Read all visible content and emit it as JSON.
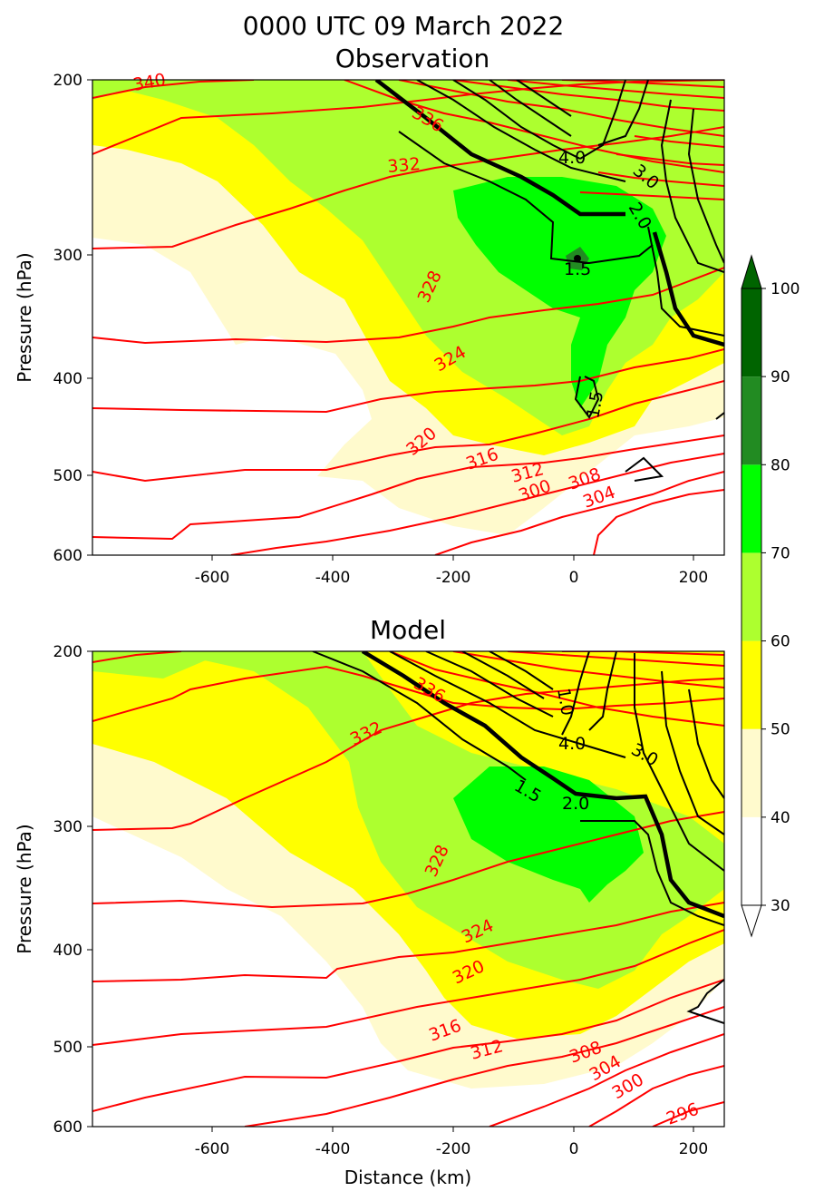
{
  "figure": {
    "title": "0000 UTC 09 March 2022",
    "panel_titles": [
      "Observation",
      "Model"
    ],
    "xlabel": "Distance (km)",
    "ylabel": "Pressure (hPa)"
  },
  "colorbar": {
    "levels": [
      30,
      40,
      50,
      60,
      70,
      80,
      90,
      100
    ],
    "tick_labels": [
      "30",
      "40",
      "50",
      "60",
      "70",
      "80",
      "90",
      "100"
    ],
    "colors": [
      "#ffffff",
      "#fffacd",
      "#ffff00",
      "#adff2f",
      "#00ff00",
      "#228b22",
      "#006400"
    ],
    "extend": "both",
    "over_color": "#006400",
    "under_color": "#ffffff"
  },
  "chart_data": [
    {
      "type": "filled-contour",
      "panel": "Observation",
      "x_ticks": [
        "-600",
        "-400",
        "-200",
        "0",
        "200"
      ],
      "x_tick_values": [
        -600,
        -400,
        -200,
        0,
        200
      ],
      "y_ticks": [
        "200",
        "300",
        "400",
        "500",
        "600"
      ],
      "y_tick_values": [
        200,
        300,
        400,
        500,
        600
      ],
      "xlim": [
        -800,
        250
      ],
      "ylim": [
        600,
        200
      ],
      "yscale": "log",
      "theta_contours": [
        {
          "label": "300",
          "points": [
            [
              50,
              600
            ],
            [
              100,
              540
            ],
            [
              150,
              505
            ],
            [
              250,
              480
            ]
          ],
          "label_at": [
            120,
            540
          ]
        },
        {
          "label": "304",
          "points": [
            [
              -200,
              600
            ],
            [
              -100,
              575
            ],
            [
              0,
              545
            ],
            [
              100,
              515
            ],
            [
              250,
              475
            ]
          ],
          "label_at": [
            50,
            550
          ]
        },
        {
          "label": "308",
          "points": [
            [
              -600,
              600
            ],
            [
              -400,
              590
            ],
            [
              -200,
              570
            ],
            [
              -50,
              550
            ],
            [
              100,
              510
            ],
            [
              250,
              470
            ]
          ],
          "label_at": [
            0,
            535
          ]
        },
        {
          "label": "312",
          "points": [
            [
              -800,
              580
            ],
            [
              -650,
              578
            ],
            [
              -600,
              565
            ],
            [
              -400,
              550
            ],
            [
              -300,
              545
            ],
            [
              -200,
              525
            ],
            [
              -100,
              515
            ],
            [
              50,
              495
            ],
            [
              250,
              465
            ]
          ],
          "label_at": [
            -70,
            517
          ]
        },
        {
          "label": "316",
          "points": [
            [
              -800,
              495
            ],
            [
              -650,
              505
            ],
            [
              -550,
              500
            ],
            [
              -400,
              500
            ],
            [
              -200,
              495
            ],
            [
              -100,
              480
            ],
            [
              0,
              470
            ],
            [
              100,
              455
            ],
            [
              250,
              430
            ]
          ],
          "label_at": [
            -140,
            487
          ]
        },
        {
          "label": "320",
          "points": [
            [
              -800,
              428
            ],
            [
              -600,
              430
            ],
            [
              -400,
              432
            ],
            [
              -300,
              500
            ],
            [
              -200,
              450
            ],
            [
              -100,
              440
            ],
            [
              0,
              420
            ],
            [
              150,
              405
            ],
            [
              250,
              395
            ]
          ],
          "label_at": [
            -240,
            465
          ]
        },
        {
          "label": "324",
          "points": [
            [
              -800,
              365
            ],
            [
              -670,
              370
            ],
            [
              -400,
              368
            ],
            [
              -250,
              360
            ],
            [
              -150,
              355
            ],
            [
              -50,
              345
            ],
            [
              50,
              330
            ],
            [
              150,
              320
            ],
            [
              250,
              300
            ]
          ],
          "label_at": [
            -200,
            395
          ]
        },
        {
          "label": "328",
          "points": [
            [
              -800,
              296
            ],
            [
              -670,
              295
            ],
            [
              -500,
              265
            ],
            [
              -300,
              250
            ],
            [
              -220,
              260
            ],
            [
              -100,
              260
            ],
            [
              50,
              240
            ],
            [
              150,
              230
            ],
            [
              250,
              225
            ]
          ],
          "label_at": [
            -230,
            325
          ]
        },
        {
          "label": "332",
          "points": [
            [
              -800,
              240
            ],
            [
              -670,
              232
            ],
            [
              -500,
              230
            ],
            [
              -350,
              225
            ],
            [
              -250,
              215
            ],
            [
              -100,
              210
            ],
            [
              50,
              205
            ],
            [
              150,
              200
            ],
            [
              250,
              200
            ]
          ],
          "label_at": [
            -270,
            238
          ]
        },
        {
          "label": "336",
          "points": [
            [
              -800,
              210
            ],
            [
              -600,
              200
            ]
          ],
          "label_at": [
            -240,
            218
          ]
        },
        {
          "label": "340",
          "points": [
            [
              -700,
              200
            ],
            [
              -650,
              200
            ]
          ],
          "label_at": [
            -700,
            201
          ]
        }
      ],
      "wind_contours": [
        {
          "label": "1.5",
          "points": [
            [
              -40,
              305
            ],
            [
              0,
              298
            ],
            [
              50,
              295
            ],
            [
              80,
              292
            ]
          ],
          "label_at": [
            15,
            308
          ],
          "bold": false
        },
        {
          "label": "2.0",
          "points": [
            [
              -350,
              200
            ],
            [
              -200,
              230
            ],
            [
              -50,
              262
            ],
            [
              0,
              265
            ],
            [
              90,
              265
            ]
          ],
          "label_at": [
            115,
            262
          ],
          "bold": true
        },
        {
          "label": "3.0",
          "points": [
            [
              -300,
              200
            ],
            [
              -150,
              225
            ],
            [
              0,
              242
            ],
            [
              100,
              245
            ]
          ],
          "label_at": [
            130,
            245
          ],
          "bold": false
        },
        {
          "label": "4.0",
          "points": [
            [
              -250,
              200
            ],
            [
              -100,
              218
            ],
            [
              0,
              230
            ],
            [
              80,
              232
            ]
          ],
          "label_at": [
            0,
            230
          ],
          "bold": false
        },
        {
          "label": "1.5",
          "points": [
            [
              0,
              400
            ],
            [
              10,
              420
            ],
            [
              30,
              440
            ]
          ],
          "label_at": [
            30,
            420
          ],
          "bold": false
        }
      ],
      "jet_max_label": "1.5"
    },
    {
      "type": "filled-contour",
      "panel": "Model",
      "x_ticks": [
        "-600",
        "-400",
        "-200",
        "0",
        "200"
      ],
      "x_tick_values": [
        -600,
        -400,
        -200,
        0,
        200
      ],
      "y_ticks": [
        "200",
        "300",
        "400",
        "500",
        "600"
      ],
      "y_tick_values": [
        200,
        300,
        400,
        500,
        600
      ],
      "xlim": [
        -800,
        250
      ],
      "ylim": [
        600,
        200
      ],
      "yscale": "log",
      "theta_contours": [
        {
          "label": "296",
          "points": [
            [
              150,
              600
            ],
            [
              250,
              570
            ]
          ],
          "label_at": [
            200,
            585
          ]
        },
        {
          "label": "300",
          "points": [
            [
              0,
              600
            ],
            [
              100,
              560
            ],
            [
              250,
              520
            ]
          ],
          "label_at": [
            100,
            560
          ]
        },
        {
          "label": "304",
          "points": [
            [
              -300,
              600
            ],
            [
              -100,
              580
            ],
            [
              50,
              545
            ],
            [
              250,
              495
            ]
          ],
          "label_at": [
            60,
            540
          ]
        },
        {
          "label": "308",
          "points": [
            [
              -800,
              580
            ],
            [
              -600,
              560
            ],
            [
              -400,
              545
            ],
            [
              -200,
              530
            ],
            [
              0,
              505
            ],
            [
              250,
              460
            ]
          ],
          "label_at": [
            20,
            518
          ]
        },
        {
          "label": "312",
          "points": [
            [
              -800,
              500
            ],
            [
              -650,
              495
            ],
            [
              -500,
              500
            ],
            [
              -400,
              495
            ],
            [
              -300,
              490
            ],
            [
              -150,
              475
            ],
            [
              0,
              460
            ],
            [
              250,
              420
            ]
          ],
          "label_at": [
            -140,
            505
          ]
        },
        {
          "label": "316",
          "points": [
            [
              -800,
              430
            ],
            [
              -650,
              430
            ],
            [
              -500,
              425
            ],
            [
              -400,
              428
            ],
            [
              -300,
              420
            ],
            [
              -200,
              410
            ],
            [
              -50,
              400
            ],
            [
              100,
              385
            ],
            [
              250,
              370
            ]
          ],
          "label_at": [
            -200,
            480
          ]
        },
        {
          "label": "320",
          "points": [
            [
              -800,
              362
            ],
            [
              -650,
              360
            ],
            [
              -500,
              365
            ],
            [
              -400,
              370
            ],
            [
              -300,
              365
            ],
            [
              -150,
              345
            ],
            [
              0,
              330
            ],
            [
              150,
              320
            ],
            [
              250,
              310
            ]
          ],
          "label_at": [
            -160,
            430
          ]
        },
        {
          "label": "324",
          "points": [
            [
              -800,
              305
            ],
            [
              -670,
              303
            ],
            [
              -500,
              290
            ],
            [
              -400,
              270
            ],
            [
              -300,
              255
            ],
            [
              -200,
              245
            ],
            [
              -50,
              235
            ],
            [
              100,
              225
            ],
            [
              250,
              220
            ]
          ],
          "label_at": [
            -150,
            395
          ]
        },
        {
          "label": "328",
          "points": [
            [
              -800,
              240
            ],
            [
              -670,
              230
            ],
            [
              -500,
              220
            ],
            [
              -400,
              212
            ],
            [
              -300,
              205
            ],
            [
              -200,
              200
            ]
          ],
          "label_at": [
            -230,
            325
          ]
        },
        {
          "label": "332",
          "points": [
            [
              -800,
              205
            ],
            [
              -650,
              200
            ]
          ],
          "label_at": [
            -330,
            248
          ]
        },
        {
          "label": "336",
          "points": [
            [
              -700,
              200
            ]
          ],
          "label_at": [
            -240,
            228
          ]
        }
      ],
      "wind_contours": [
        {
          "label": "1.5",
          "points": [
            [
              -330,
              200
            ],
            [
              -200,
              240
            ],
            [
              -100,
              265
            ],
            [
              0,
              282
            ]
          ],
          "label_at": [
            -70,
            290
          ],
          "bold": false
        },
        {
          "label": "2.0",
          "points": [
            [
              -270,
              200
            ],
            [
              -150,
              245
            ],
            [
              0,
              280
            ],
            [
              80,
              285
            ]
          ],
          "label_at": [
            10,
            290
          ],
          "bold": true
        },
        {
          "label": "3.0",
          "points": [
            [
              -200,
              200
            ],
            [
              -50,
              230
            ],
            [
              50,
              250
            ],
            [
              120,
              255
            ]
          ],
          "label_at": [
            120,
            255
          ],
          "bold": false
        },
        {
          "label": "4.0",
          "points": [
            [
              -150,
              200
            ],
            [
              -50,
              220
            ],
            [
              0,
              245
            ],
            [
              80,
              248
            ]
          ],
          "label_at": [
            0,
            248
          ],
          "bold": false
        },
        {
          "label": "1.0",
          "points": [
            [
              0,
              200
            ],
            [
              30,
              220
            ]
          ],
          "label_at": [
            0,
            220
          ],
          "bold": false
        }
      ]
    }
  ]
}
